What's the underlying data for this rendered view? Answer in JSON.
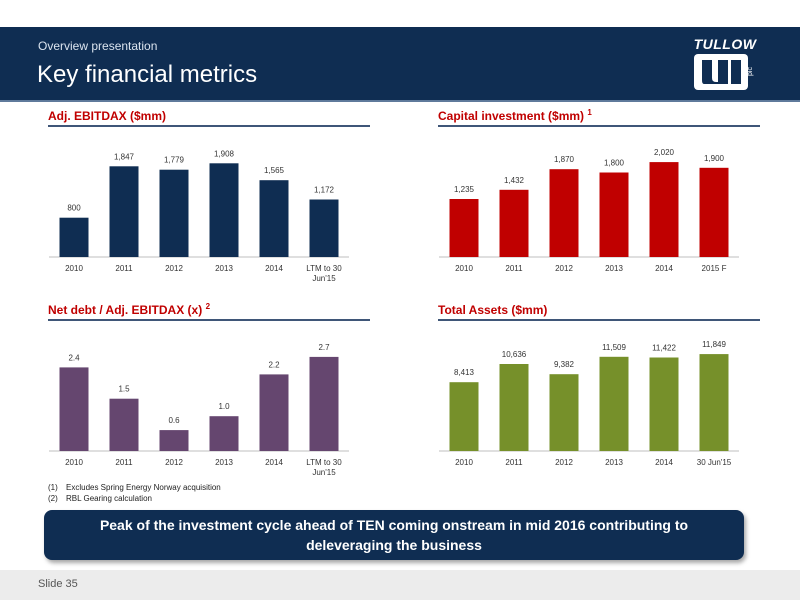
{
  "header": {
    "subtitle": "Overview presentation",
    "title": "Key financial metrics",
    "logo_text": "TULLOW",
    "logo_suffix": "plc"
  },
  "colors": {
    "header_bg": "#0f2d52",
    "ebitdax_bar": "#0f2d52",
    "capex_bar": "#c00000",
    "netdebt_bar": "#65466f",
    "assets_bar": "#76902a",
    "panel_title": "#c00000"
  },
  "chart_data": [
    {
      "id": "ebitdax",
      "type": "bar",
      "title": "Adj. EBITDAX ($mm)",
      "title_sup": "",
      "categories": [
        "2010",
        "2011",
        "2012",
        "2013",
        "2014",
        [
          "LTM to 30",
          "Jun'15"
        ]
      ],
      "values": [
        800,
        1847,
        1779,
        1908,
        1565,
        1172
      ],
      "value_labels": [
        "800",
        "1,847",
        "1,779",
        "1,908",
        "1,565",
        "1,172"
      ],
      "ylim": [
        0,
        2200
      ],
      "grid": false
    },
    {
      "id": "capex",
      "type": "bar",
      "title": "Capital investment ($mm)",
      "title_sup": "1",
      "categories": [
        "2010",
        "2011",
        "2012",
        "2013",
        "2014",
        "2015 F"
      ],
      "values": [
        1235,
        1432,
        1870,
        1800,
        2020,
        1900
      ],
      "value_labels": [
        "1,235",
        "1,432",
        "1,870",
        "1,800",
        "2,020",
        "1,900"
      ],
      "ylim": [
        0,
        2300
      ],
      "grid": false
    },
    {
      "id": "netdebt",
      "type": "bar",
      "title": "Net debt / Adj. EBITDAX (x)",
      "title_sup": "2",
      "categories": [
        "2010",
        "2011",
        "2012",
        "2013",
        "2014",
        [
          "LTM to 30",
          "Jun'15"
        ]
      ],
      "values": [
        2.4,
        1.5,
        0.6,
        1.0,
        2.2,
        2.7
      ],
      "value_labels": [
        "2.4",
        "1.5",
        "0.6",
        "1.0",
        "2.2",
        "2.7"
      ],
      "ylim": [
        0,
        3.1
      ],
      "grid": false
    },
    {
      "id": "assets",
      "type": "bar",
      "title": "Total Assets ($mm)",
      "title_sup": "",
      "categories": [
        "2010",
        "2011",
        "2012",
        "2013",
        "2014",
        "30 Jun'15"
      ],
      "values": [
        8413,
        10636,
        9382,
        11509,
        11422,
        11849
      ],
      "value_labels": [
        "8,413",
        "10,636",
        "9,382",
        "11,509",
        "11,422",
        "11,849"
      ],
      "ylim": [
        0,
        13200
      ],
      "grid": false
    }
  ],
  "footnotes": [
    {
      "num": "(1)",
      "text": "Excludes Spring Energy Norway acquisition"
    },
    {
      "num": "(2)",
      "text": "RBL Gearing calculation"
    }
  ],
  "callout": "Peak of the investment cycle ahead of TEN coming onstream in mid 2016 contributing to deleveraging the business",
  "footer": {
    "slide_label": "Slide 35"
  }
}
